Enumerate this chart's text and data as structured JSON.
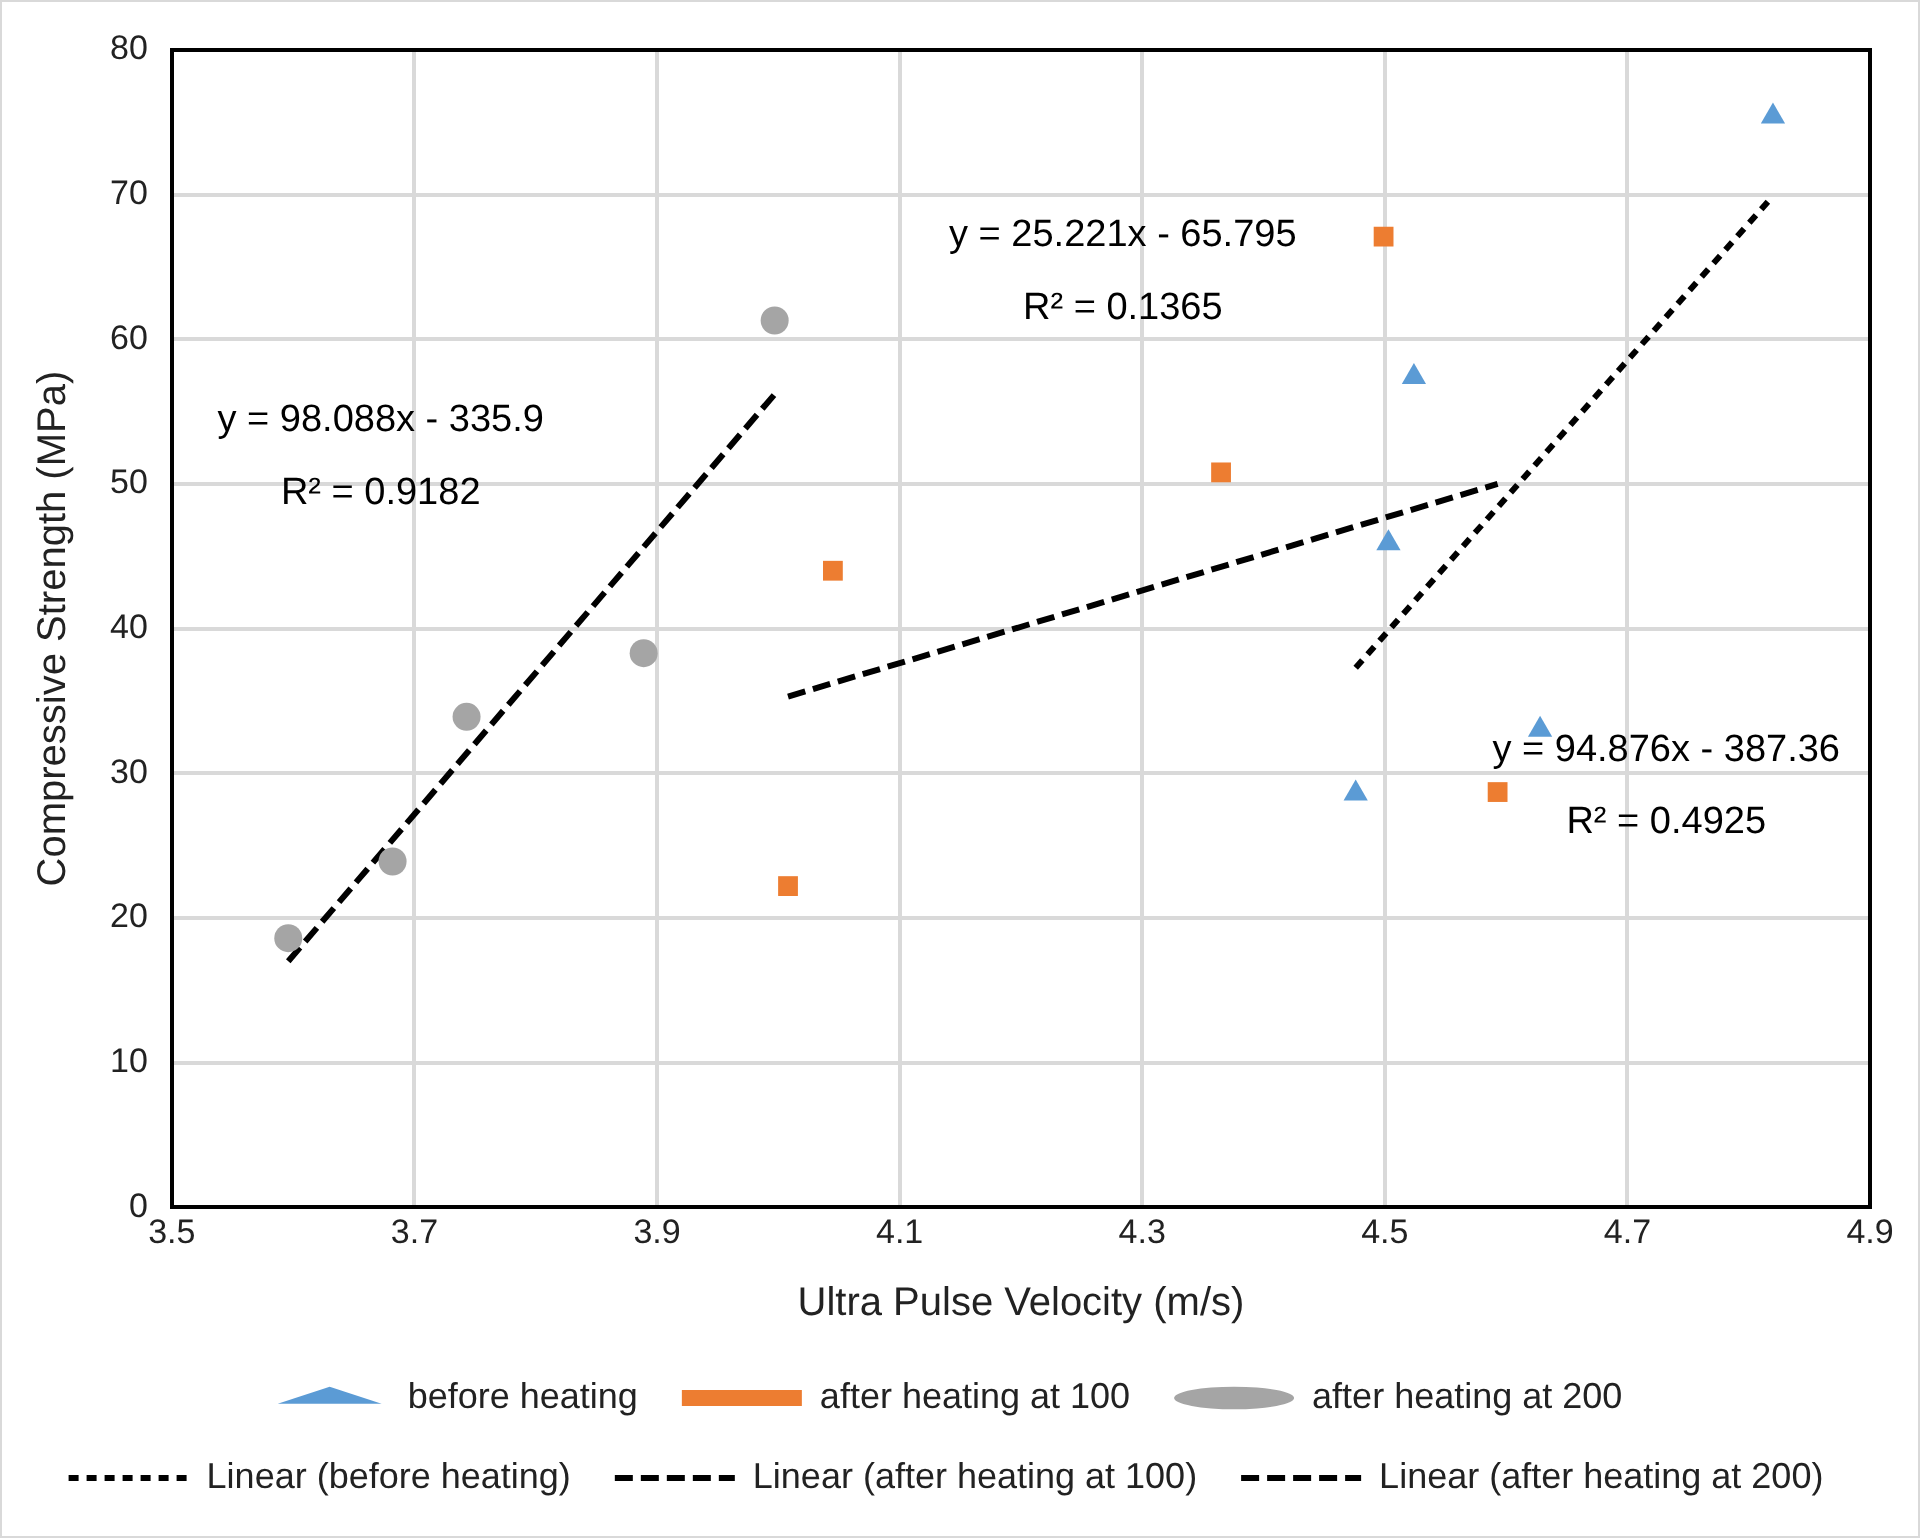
{
  "chart_data": {
    "type": "scatter",
    "xlabel": "Ultra Pulse Velocity (m/s)",
    "ylabel": "Compressive Strength (MPa)",
    "xlim": [
      3.5,
      4.9
    ],
    "xticks": [
      {
        "value": 3.5,
        "label": "3.5"
      },
      {
        "value": 3.7,
        "label": "3.7"
      },
      {
        "value": 3.9,
        "label": "3.9"
      },
      {
        "value": 4.1,
        "label": "4.1"
      },
      {
        "value": 4.3,
        "label": "4.3"
      },
      {
        "value": 4.5,
        "label": "4.5"
      },
      {
        "value": 4.7,
        "label": "4.7"
      },
      {
        "value": 4.9,
        "label": "4.9"
      }
    ],
    "ylim": [
      0,
      80
    ],
    "yticks": [
      0,
      10,
      20,
      30,
      40,
      50,
      60,
      70,
      80
    ],
    "grid": true,
    "legend": "bottom",
    "series": [
      {
        "name": "before heating",
        "type": "scatter",
        "marker": "triangle",
        "color": "#5b9bd5",
        "x": [
          4.476,
          4.503,
          4.524,
          4.628,
          4.82
        ],
        "values": [
          28.6,
          45.9,
          57.4,
          33.0,
          75.4
        ]
      },
      {
        "name": "after heating at 100",
        "type": "scatter",
        "marker": "square",
        "color": "#ed7d31",
        "x": [
          4.008,
          4.045,
          4.365,
          4.499,
          4.593
        ],
        "values": [
          22.2,
          44.0,
          50.8,
          67.1,
          28.7
        ]
      },
      {
        "name": "after heating at 200",
        "type": "scatter",
        "marker": "circle",
        "color": "#a5a5a5",
        "x": [
          3.596,
          3.682,
          3.743,
          3.889,
          3.997
        ],
        "values": [
          18.6,
          23.9,
          33.9,
          38.3,
          61.3
        ]
      },
      {
        "name": "Linear (before heating)",
        "type": "line",
        "marker": "none",
        "line_style": "dotted",
        "color": "#000000",
        "x": [
          4.476,
          4.82
        ],
        "values": [
          37.3,
          69.9
        ]
      },
      {
        "name": "Linear (after heating at 100)",
        "type": "line",
        "marker": "none",
        "line_style": "dashed",
        "color": "#000000",
        "x": [
          4.008,
          4.593
        ],
        "values": [
          35.3,
          50.0
        ]
      },
      {
        "name": "Linear (after heating at 200)",
        "type": "line",
        "marker": "none",
        "line_style": "dashed",
        "color": "#000000",
        "x": [
          3.596,
          3.997
        ],
        "values": [
          17.0,
          56.2
        ]
      }
    ],
    "annotations": [
      "y = 98.088x - 335.9",
      "R² = 0.9182",
      "y = 25.221x - 65.795",
      "R² = 0.1365",
      "y = 94.876x - 387.36",
      "R² = 0.4925"
    ]
  }
}
